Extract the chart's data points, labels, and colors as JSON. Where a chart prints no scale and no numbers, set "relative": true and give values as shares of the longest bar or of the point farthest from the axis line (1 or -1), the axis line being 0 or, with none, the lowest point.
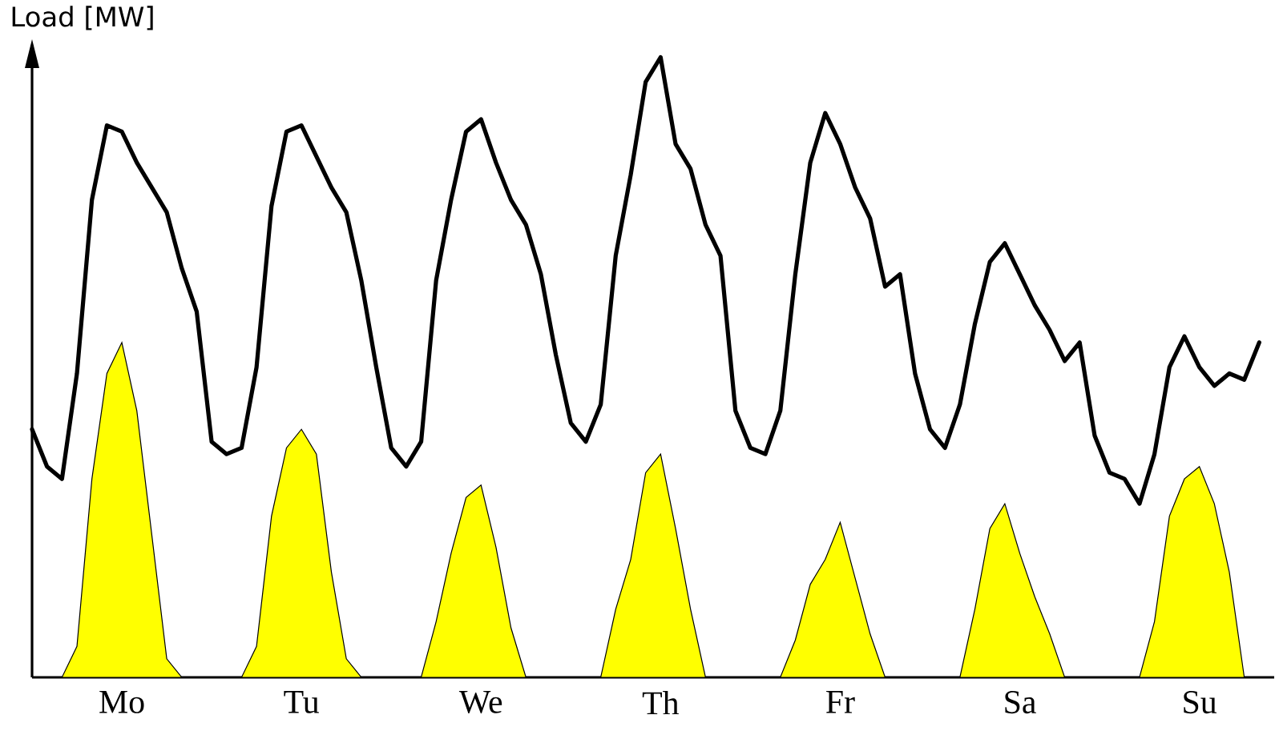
{
  "chart_data": {
    "type": "area",
    "ylabel": "Load [MW]",
    "relative": true,
    "categories": [
      null,
      null,
      null,
      null,
      null,
      null,
      "Mo",
      null,
      null,
      null,
      null,
      null,
      null,
      null,
      null,
      null,
      null,
      null,
      "Tu",
      null,
      null,
      null,
      null,
      null,
      null,
      null,
      null,
      null,
      null,
      null,
      "We",
      null,
      null,
      null,
      null,
      null,
      null,
      null,
      null,
      null,
      null,
      null,
      "Th",
      null,
      null,
      null,
      null,
      null,
      null,
      null,
      null,
      null,
      null,
      null,
      "Fr",
      null,
      null,
      null,
      null,
      null,
      null,
      null,
      null,
      null,
      null,
      null,
      "Sa",
      null,
      null,
      null,
      null,
      null,
      null,
      null,
      null,
      null,
      null,
      null,
      "Su",
      null,
      null,
      null,
      null
    ],
    "series": [
      {
        "color": "#ffff00",
        "values": [
          0,
          0,
          0,
          0.05,
          0.32,
          0.49,
          0.54,
          0.43,
          0.23,
          0.03,
          0,
          0,
          0,
          0,
          0,
          0.05,
          0.26,
          0.37,
          0.4,
          0.36,
          0.17,
          0.03,
          0,
          0,
          0,
          0,
          0,
          0.09,
          0.2,
          0.29,
          0.31,
          0.21,
          0.08,
          0,
          0,
          0,
          0,
          0,
          0,
          0.11,
          0.19,
          0.33,
          0.36,
          0.24,
          0.11,
          0,
          0,
          0,
          0,
          0,
          0,
          0.06,
          0.15,
          0.19,
          0.25,
          0.16,
          0.07,
          0,
          0,
          0,
          0,
          0,
          0,
          0.11,
          0.24,
          0.28,
          0.2,
          0.13,
          0.07,
          0,
          0,
          0,
          0,
          0,
          0,
          0.09,
          0.26,
          0.32,
          0.34,
          0.28,
          0.17,
          0,
          0
        ]
      },
      {
        "type": "line",
        "color": "#000000",
        "values": [
          0.4,
          0.34,
          0.32,
          0.49,
          0.77,
          0.89,
          0.88,
          0.83,
          0.79,
          0.75,
          0.66,
          0.59,
          0.38,
          0.36,
          0.37,
          0.5,
          0.76,
          0.88,
          0.89,
          0.84,
          0.79,
          0.75,
          0.64,
          0.5,
          0.37,
          0.34,
          0.38,
          0.64,
          0.77,
          0.88,
          0.9,
          0.83,
          0.77,
          0.73,
          0.65,
          0.52,
          0.41,
          0.38,
          0.44,
          0.68,
          0.81,
          0.96,
          1,
          0.86,
          0.82,
          0.73,
          0.68,
          0.43,
          0.37,
          0.36,
          0.43,
          0.65,
          0.83,
          0.91,
          0.86,
          0.79,
          0.74,
          0.63,
          0.65,
          0.49,
          0.4,
          0.37,
          0.44,
          0.57,
          0.67,
          0.7,
          0.65,
          0.6,
          0.56,
          0.51,
          0.54,
          0.39,
          0.33,
          0.32,
          0.28,
          0.36,
          0.5,
          0.55,
          0.5,
          0.47,
          0.49,
          0.48,
          0.54
        ]
      }
    ]
  }
}
